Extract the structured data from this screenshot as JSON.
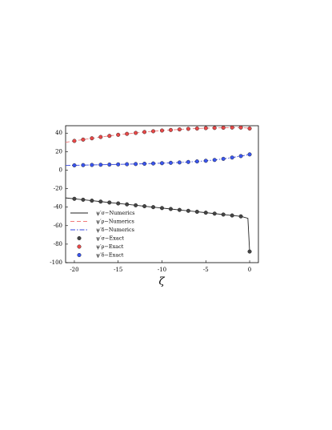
{
  "chart_data": {
    "type": "line",
    "xlabel": "ζ",
    "xlim": [
      -21,
      1
    ],
    "ylim": [
      -100,
      48
    ],
    "xticks": [
      -20,
      -15,
      -10,
      -5,
      0
    ],
    "yticks": [
      -100,
      -80,
      -60,
      -40,
      -20,
      0,
      20,
      40
    ],
    "legend": "lower left",
    "series": [
      {
        "name": "ψ′σ−Numerics",
        "color": "#222222",
        "style": "solid",
        "x": [
          -21,
          -20,
          -19,
          -18,
          -17,
          -16,
          -15,
          -14,
          -13,
          -12,
          -11,
          -10,
          -9,
          -8,
          -7,
          -6,
          -5,
          -4,
          -3,
          -2,
          -1,
          -0.2,
          0
        ],
        "values": [
          -30,
          -31,
          -32,
          -33,
          -34,
          -35,
          -36,
          -37,
          -38,
          -39,
          -40,
          -41,
          -42,
          -43,
          -44,
          -45,
          -46,
          -47,
          -48,
          -49,
          -50,
          -52,
          -88
        ]
      },
      {
        "name": "ψ′ρ−Numerics",
        "color": "#f07a7a",
        "style": "dashed",
        "x": [
          -21,
          -20,
          -19,
          -18,
          -17,
          -16,
          -15,
          -14,
          -13,
          -12,
          -11,
          -10,
          -9,
          -8,
          -7,
          -6,
          -5,
          -4,
          -3,
          -2,
          -1,
          -0.2,
          0
        ],
        "values": [
          30,
          31.6,
          33,
          34.4,
          35.8,
          37,
          38.2,
          39.2,
          40.2,
          41.2,
          42,
          42.8,
          43.4,
          44,
          44.6,
          45,
          45.4,
          45.6,
          45.8,
          46,
          46,
          45.5,
          45
        ]
      },
      {
        "name": "ψ′δ−Numerics",
        "color": "#3344dd",
        "style": "dashdot",
        "x": [
          -21,
          -20,
          -19,
          -18,
          -17,
          -16,
          -15,
          -14,
          -13,
          -12,
          -11,
          -10,
          -9,
          -8,
          -7,
          -6,
          -5,
          -4,
          -3,
          -2,
          -1,
          -0.2,
          0
        ],
        "values": [
          5,
          5.2,
          5.4,
          5.6,
          5.8,
          6,
          6.2,
          6.4,
          6.6,
          6.9,
          7.2,
          7.5,
          7.9,
          8.3,
          8.8,
          9.4,
          10.1,
          11,
          12.2,
          13.6,
          15.2,
          16.6,
          17
        ]
      },
      {
        "name": "ψ′σ−Exact",
        "color": "#444444",
        "style": "marker",
        "x": [
          -20,
          -19,
          -18,
          -17,
          -16,
          -15,
          -14,
          -13,
          -12,
          -11,
          -10,
          -9,
          -8,
          -7,
          -6,
          -5,
          -4,
          -3,
          -2,
          -1,
          0
        ],
        "values": [
          -31,
          -32,
          -33,
          -34,
          -35,
          -36,
          -37,
          -38,
          -39,
          -40,
          -41,
          -42,
          -43,
          -44,
          -45,
          -46,
          -47,
          -48,
          -49,
          -50,
          -88
        ]
      },
      {
        "name": "ψ′ρ−Exact",
        "color": "#e84848",
        "style": "marker",
        "x": [
          -20,
          -19,
          -18,
          -17,
          -16,
          -15,
          -14,
          -13,
          -12,
          -11,
          -10,
          -9,
          -8,
          -7,
          -6,
          -5,
          -4,
          -3,
          -2,
          -1,
          0
        ],
        "values": [
          31.6,
          33,
          34.4,
          35.8,
          37,
          38.2,
          39.2,
          40.2,
          41.2,
          42,
          42.8,
          43.4,
          44,
          44.6,
          45,
          45.4,
          45.6,
          45.8,
          46,
          46,
          45
        ]
      },
      {
        "name": "ψ′δ−Exact",
        "color": "#3a55ee",
        "style": "marker",
        "x": [
          -20,
          -19,
          -18,
          -17,
          -16,
          -15,
          -14,
          -13,
          -12,
          -11,
          -10,
          -9,
          -8,
          -7,
          -6,
          -5,
          -4,
          -3,
          -2,
          -1,
          0
        ],
        "values": [
          5.2,
          5.4,
          5.6,
          5.8,
          6,
          6.2,
          6.4,
          6.6,
          6.9,
          7.2,
          7.5,
          7.9,
          8.3,
          8.8,
          9.4,
          10.1,
          11,
          12.2,
          13.6,
          15.2,
          17
        ]
      }
    ]
  }
}
